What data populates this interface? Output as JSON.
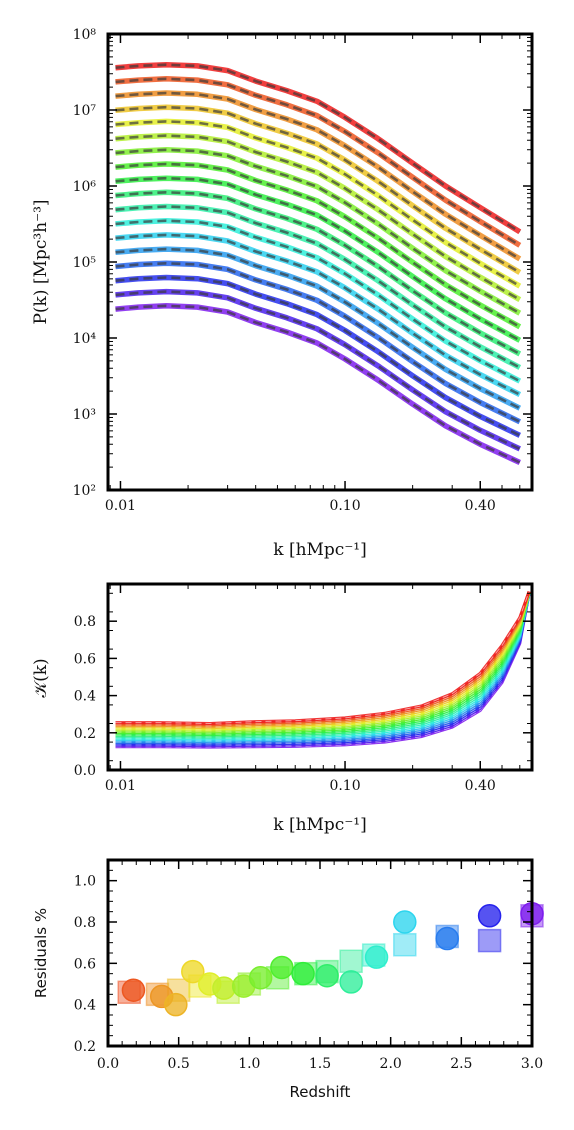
{
  "chart_data": [
    {
      "type": "line",
      "xlabel": "k [hMpc⁻¹]",
      "ylabel": "P(k) [Mpc³h⁻³]",
      "xscale": "log",
      "yscale": "log",
      "xlim": [
        0.0088,
        0.68
      ],
      "ylim": [
        100,
        100000000
      ],
      "xticks": [
        {
          "v": 0.01,
          "label": "0.01"
        },
        {
          "v": 0.1,
          "label": "0.10"
        },
        {
          "v": 0.4,
          "label": "0.40"
        }
      ],
      "yticks": [
        {
          "v": 100,
          "label": "10²"
        },
        {
          "v": 1000,
          "label": "10³"
        },
        {
          "v": 10000,
          "label": "10⁴"
        },
        {
          "v": 100000,
          "label": "10⁵"
        },
        {
          "v": 1000000,
          "label": "10⁶"
        },
        {
          "v": 10000000,
          "label": "10⁷"
        },
        {
          "v": 100000000,
          "label": "10⁸"
        }
      ],
      "grid": false,
      "n_series": 18,
      "colormap": "rainbow (red at top → purple at bottom)",
      "line_style": "solid colored line with dark dashed overlay",
      "x": [
        0.0095,
        0.012,
        0.016,
        0.022,
        0.03,
        0.04,
        0.055,
        0.075,
        0.1,
        0.14,
        0.2,
        0.28,
        0.4,
        0.6
      ],
      "top_series": [
        36000000,
        38000000,
        39500000,
        38000000,
        33000000,
        24000000,
        18000000,
        13000000,
        8000000,
        4200000,
        2000000,
        1000000,
        520000,
        250000
      ],
      "bottom_series": [
        24000,
        25500,
        26500,
        25500,
        22000,
        16000,
        12000,
        8600,
        5300,
        2800,
        1350,
        700,
        400,
        230
      ]
    },
    {
      "type": "line",
      "xlabel": "k [hMpc⁻¹]",
      "ylabel": "𝒦(k)",
      "xscale": "log",
      "xlim": [
        0.0088,
        0.68
      ],
      "ylim": [
        0.0,
        1.0
      ],
      "xticks": [
        {
          "v": 0.01,
          "label": "0.01"
        },
        {
          "v": 0.1,
          "label": "0.10"
        },
        {
          "v": 0.4,
          "label": "0.40"
        }
      ],
      "yticks": [
        {
          "v": 0.0,
          "label": "0.0"
        },
        {
          "v": 0.2,
          "label": "0.2"
        },
        {
          "v": 0.4,
          "label": "0.4"
        },
        {
          "v": 0.6,
          "label": "0.6"
        },
        {
          "v": 0.8,
          "label": "0.8"
        }
      ],
      "grid": false,
      "n_series": 18,
      "colormap": "rainbow (red at top → purple at bottom)",
      "x": [
        0.0095,
        0.015,
        0.025,
        0.04,
        0.06,
        0.1,
        0.15,
        0.22,
        0.3,
        0.4,
        0.5,
        0.6,
        0.66
      ],
      "top_series": [
        0.255,
        0.255,
        0.25,
        0.26,
        0.265,
        0.28,
        0.305,
        0.345,
        0.41,
        0.52,
        0.67,
        0.82,
        0.96
      ],
      "bottom_series": [
        0.125,
        0.125,
        0.123,
        0.125,
        0.127,
        0.135,
        0.15,
        0.18,
        0.23,
        0.32,
        0.47,
        0.68,
        0.95
      ]
    },
    {
      "type": "scatter",
      "xlabel": "Redshift",
      "ylabel": "Residuals %",
      "xlim": [
        0.0,
        3.0
      ],
      "ylim": [
        0.2,
        1.1
      ],
      "xticks": [
        {
          "v": 0.0,
          "label": "0.0"
        },
        {
          "v": 0.5,
          "label": "0.5"
        },
        {
          "v": 1.0,
          "label": "1.0"
        },
        {
          "v": 1.5,
          "label": "1.5"
        },
        {
          "v": 2.0,
          "label": "2.0"
        },
        {
          "v": 2.5,
          "label": "2.5"
        },
        {
          "v": 3.0,
          "label": "3.0"
        }
      ],
      "yticks": [
        {
          "v": 0.2,
          "label": "0.2"
        },
        {
          "v": 0.4,
          "label": "0.4"
        },
        {
          "v": 0.6,
          "label": "0.6"
        },
        {
          "v": 0.8,
          "label": "0.8"
        },
        {
          "v": 1.0,
          "label": "1.0"
        }
      ],
      "grid": false,
      "colormap": "rainbow by redshift",
      "series": [
        {
          "marker": "circle",
          "points": [
            {
              "x": 0.18,
              "y": 0.47
            },
            {
              "x": 0.38,
              "y": 0.44
            },
            {
              "x": 0.48,
              "y": 0.4
            },
            {
              "x": 0.6,
              "y": 0.56
            },
            {
              "x": 0.72,
              "y": 0.5
            },
            {
              "x": 0.82,
              "y": 0.48
            },
            {
              "x": 0.96,
              "y": 0.49
            },
            {
              "x": 1.08,
              "y": 0.53
            },
            {
              "x": 1.23,
              "y": 0.58
            },
            {
              "x": 1.38,
              "y": 0.55
            },
            {
              "x": 1.55,
              "y": 0.54
            },
            {
              "x": 1.72,
              "y": 0.51
            },
            {
              "x": 1.9,
              "y": 0.63
            },
            {
              "x": 2.1,
              "y": 0.8
            },
            {
              "x": 2.4,
              "y": 0.72
            },
            {
              "x": 2.7,
              "y": 0.83
            },
            {
              "x": 3.0,
              "y": 0.84
            }
          ]
        },
        {
          "marker": "square",
          "points": [
            {
              "x": 0.15,
              "y": 0.46
            },
            {
              "x": 0.35,
              "y": 0.45
            },
            {
              "x": 0.5,
              "y": 0.47
            },
            {
              "x": 0.65,
              "y": 0.49
            },
            {
              "x": 0.85,
              "y": 0.46
            },
            {
              "x": 1.0,
              "y": 0.5
            },
            {
              "x": 1.2,
              "y": 0.53
            },
            {
              "x": 1.4,
              "y": 0.55
            },
            {
              "x": 1.55,
              "y": 0.56
            },
            {
              "x": 1.72,
              "y": 0.61
            },
            {
              "x": 1.88,
              "y": 0.64
            },
            {
              "x": 2.1,
              "y": 0.69
            },
            {
              "x": 2.4,
              "y": 0.73
            },
            {
              "x": 2.7,
              "y": 0.71
            },
            {
              "x": 3.0,
              "y": 0.83
            }
          ]
        }
      ]
    }
  ]
}
